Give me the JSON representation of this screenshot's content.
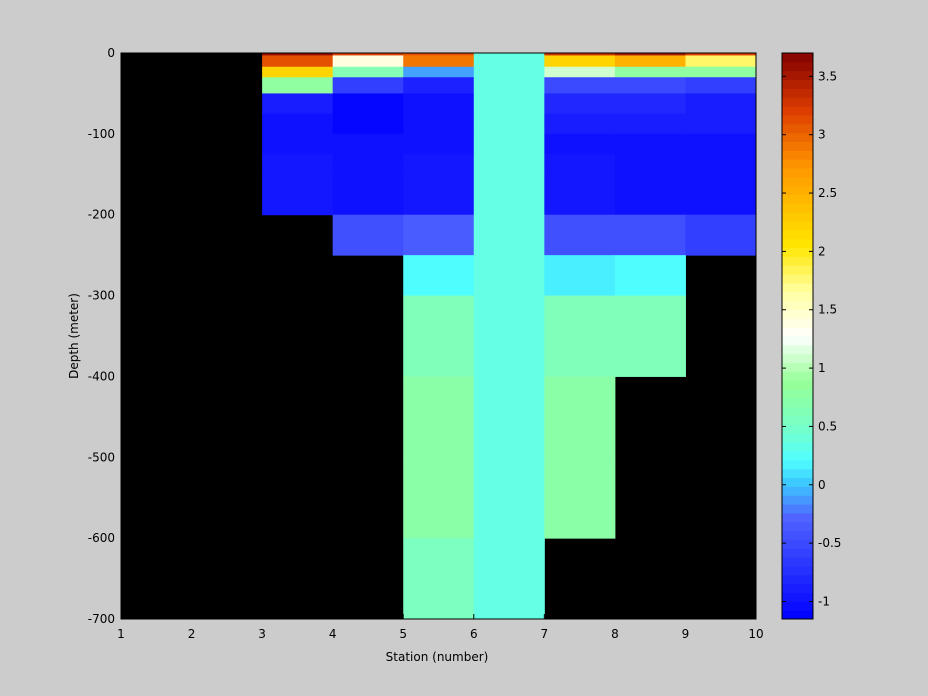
{
  "chart_data": {
    "type": "heatmap",
    "title": "",
    "xlabel": "Station (number)",
    "ylabel": "Depth (meter)",
    "xlim": [
      1,
      10
    ],
    "ylim": [
      -700,
      0
    ],
    "xticks": [
      1,
      2,
      3,
      4,
      5,
      6,
      7,
      8,
      9,
      10
    ],
    "yticks": [
      0,
      -100,
      -200,
      -300,
      -400,
      -500,
      -600,
      -700
    ],
    "ytick_labels": [
      "0",
      "-100",
      "-200",
      "-300",
      "-400",
      "-500",
      "-600",
      "-700"
    ],
    "colorbar": {
      "colormap": "jet-like (blue-cyan-green-white-yellow-orange-dark red)",
      "range": [
        -1.15,
        3.7
      ],
      "ticks": [
        -1,
        -0.5,
        0,
        0.5,
        1,
        1.5,
        2,
        2.5,
        3,
        3.5
      ],
      "tick_labels": [
        "-1",
        "-0.5",
        "0",
        "0.5",
        "1",
        "1.5",
        "2",
        "2.5",
        "3",
        "3.5"
      ]
    },
    "background_color": "#000000",
    "column_edges": [
      3,
      4,
      5,
      6,
      7,
      8,
      9,
      10
    ],
    "row_edges_depth": [
      0,
      -3,
      -17,
      -30,
      -50,
      -75,
      -100,
      -125,
      -150,
      -200,
      -250,
      -300,
      -400,
      -500,
      -600,
      -700
    ],
    "values": [
      [
        3.6,
        3.2,
        3.1,
        0.35,
        3.3,
        3.5,
        3.2
      ],
      [
        3.1,
        1.4,
        2.9,
        0.35,
        2.2,
        2.5,
        1.8
      ],
      [
        2.2,
        0.65,
        -0.1,
        0.35,
        1.1,
        0.8,
        0.8
      ],
      [
        0.8,
        -0.6,
        -0.85,
        0.35,
        -0.5,
        -0.5,
        -0.6
      ],
      [
        -0.9,
        -1.1,
        -1.0,
        0.35,
        -0.8,
        -0.8,
        -0.9
      ],
      [
        -1.0,
        -1.1,
        -1.0,
        0.35,
        -0.9,
        -0.9,
        -0.9
      ],
      [
        -1.0,
        -1.0,
        -1.0,
        0.35,
        -1.0,
        -1.0,
        -1.0
      ],
      [
        -0.95,
        -1.0,
        -0.95,
        0.35,
        -0.95,
        -1.0,
        -1.0
      ],
      [
        -0.95,
        -1.0,
        -0.95,
        0.35,
        -0.95,
        -1.0,
        -1.0
      ],
      [
        null,
        -0.45,
        -0.35,
        0.35,
        -0.45,
        -0.45,
        -0.6
      ],
      [
        null,
        null,
        0.2,
        0.35,
        0.15,
        0.2,
        null
      ],
      [
        null,
        null,
        0.6,
        0.35,
        0.6,
        0.6,
        null
      ],
      [
        null,
        null,
        0.75,
        0.35,
        0.75,
        null,
        null
      ],
      [
        null,
        null,
        0.75,
        0.35,
        0.75,
        null,
        null
      ],
      [
        null,
        null,
        0.55,
        0.35,
        null,
        null,
        null
      ]
    ]
  }
}
